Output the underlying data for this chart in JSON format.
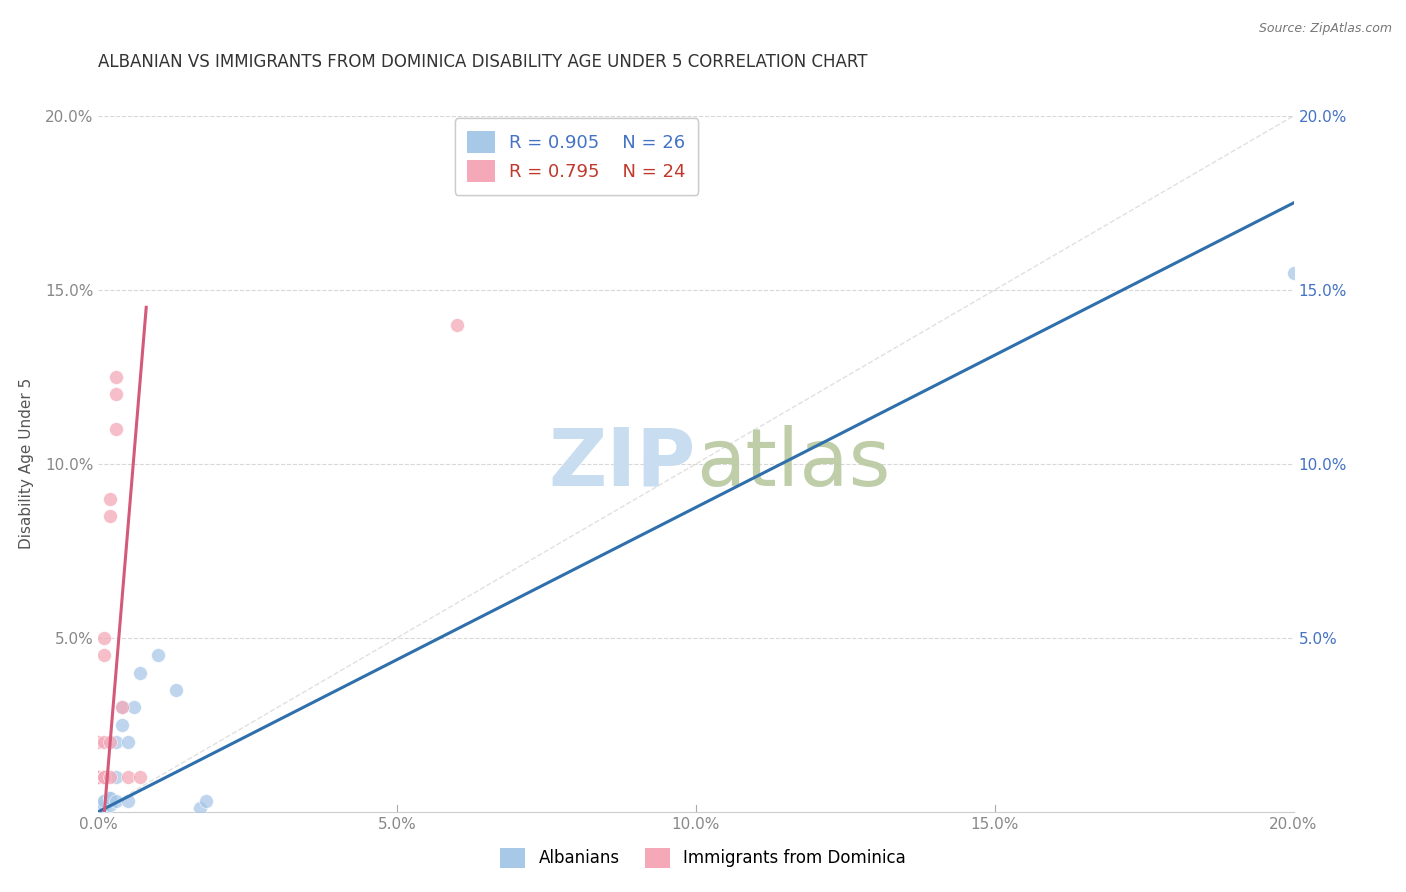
{
  "title": "ALBANIAN VS IMMIGRANTS FROM DOMINICA DISABILITY AGE UNDER 5 CORRELATION CHART",
  "source": "Source: ZipAtlas.com",
  "ylabel": "Disability Age Under 5",
  "legend_albanians": "Albanians",
  "legend_dominica": "Immigrants from Dominica",
  "r_albanians": 0.905,
  "n_albanians": 26,
  "r_dominica": 0.795,
  "n_dominica": 24,
  "color_albanians": "#a8c8e8",
  "color_dominica": "#f4a8b8",
  "color_line_albanians": "#2e6fac",
  "color_line_dominica": "#d45a7a",
  "watermark_color": "#c8ddf0",
  "albanians_x": [
    0.0,
    0.0,
    0.0,
    0.001,
    0.001,
    0.001,
    0.001,
    0.001,
    0.002,
    0.002,
    0.002,
    0.002,
    0.003,
    0.003,
    0.003,
    0.004,
    0.004,
    0.005,
    0.005,
    0.006,
    0.007,
    0.01,
    0.013,
    0.017,
    0.018,
    0.2
  ],
  "albanians_y": [
    0.002,
    0.001,
    0.0,
    0.002,
    0.003,
    0.001,
    0.002,
    0.003,
    0.003,
    0.004,
    0.002,
    0.004,
    0.003,
    0.01,
    0.02,
    0.025,
    0.03,
    0.003,
    0.02,
    0.03,
    0.04,
    0.045,
    0.035,
    0.001,
    0.003,
    0.155
  ],
  "dominica_x": [
    0.0,
    0.0,
    0.0,
    0.0,
    0.0,
    0.001,
    0.001,
    0.001,
    0.001,
    0.001,
    0.001,
    0.001,
    0.001,
    0.002,
    0.002,
    0.002,
    0.002,
    0.003,
    0.003,
    0.003,
    0.004,
    0.005,
    0.007,
    0.06
  ],
  "dominica_y": [
    0.01,
    0.02,
    0.01,
    0.01,
    0.01,
    0.05,
    0.045,
    0.02,
    0.01,
    0.01,
    0.01,
    0.01,
    0.01,
    0.09,
    0.085,
    0.02,
    0.01,
    0.12,
    0.125,
    0.11,
    0.03,
    0.01,
    0.01,
    0.14
  ],
  "alb_line_x0": 0.0,
  "alb_line_y0": 0.0,
  "alb_line_x1": 0.2,
  "alb_line_y1": 0.175,
  "dom_line_x0": 0.001,
  "dom_line_y0": 0.0,
  "dom_line_x1": 0.008,
  "dom_line_y1": 0.145,
  "xlim": [
    0.0,
    0.2
  ],
  "ylim": [
    0.0,
    0.2
  ],
  "xticks": [
    0.0,
    0.05,
    0.1,
    0.15,
    0.2
  ],
  "yticks": [
    0.0,
    0.05,
    0.1,
    0.15,
    0.2
  ],
  "xticklabels": [
    "0.0%",
    "5.0%",
    "10.0%",
    "15.0%",
    "20.0%"
  ],
  "left_yticklabels": [
    "",
    "5.0%",
    "10.0%",
    "15.0%",
    "20.0%"
  ],
  "right_yticklabels": [
    "",
    "5.0%",
    "10.0%",
    "15.0%",
    "20.0%"
  ],
  "title_fontsize": 12,
  "axis_fontsize": 11,
  "tick_fontsize": 11,
  "right_tick_color": "#4472c4",
  "tick_color": "#888888",
  "grid_color": "#d8d8d8",
  "title_color": "#333333",
  "source_color": "#777777"
}
